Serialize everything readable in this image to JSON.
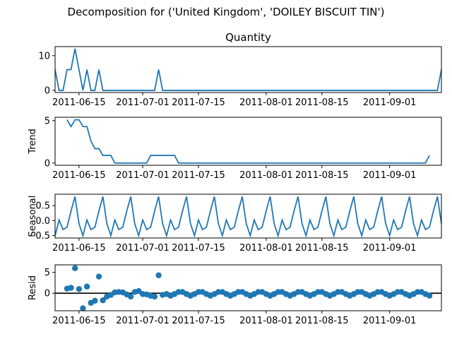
{
  "figure": {
    "suptitle": "Decomposition for ('United Kingdom', 'DOILEY BISCUIT TIN')"
  },
  "x_axis": {
    "start": "2011-06-09",
    "end": "2011-09-14",
    "ticks": [
      "2011-06-15",
      "2011-07-01",
      "2011-07-15",
      "2011-08-01",
      "2011-08-15",
      "2011-09-01"
    ]
  },
  "colors": {
    "series": "#1f77b4",
    "axis": "#000000"
  },
  "chart_data": [
    {
      "type": "line",
      "panel": "observed",
      "title": "Quantity",
      "ylabel": "",
      "ylim": [
        -0.6,
        12.6
      ],
      "yticks": [
        0,
        10
      ],
      "x_start": "2011-06-09",
      "values": [
        6,
        0,
        0,
        6,
        6,
        12,
        6,
        0,
        6,
        0,
        0,
        6,
        0,
        0,
        0,
        0,
        0,
        0,
        0,
        0,
        0,
        0,
        0,
        0,
        0,
        0,
        6,
        0,
        0,
        0,
        0,
        0,
        0,
        0,
        0,
        0,
        0,
        0,
        0,
        0,
        0,
        0,
        0,
        0,
        0,
        0,
        0,
        0,
        0,
        0,
        0,
        0,
        0,
        0,
        0,
        0,
        0,
        0,
        0,
        0,
        0,
        0,
        0,
        0,
        0,
        0,
        0,
        0,
        0,
        0,
        0,
        0,
        0,
        0,
        0,
        0,
        0,
        0,
        0,
        0,
        0,
        0,
        0,
        0,
        0,
        0,
        0,
        0,
        0,
        0,
        0,
        0,
        0,
        0,
        0,
        0,
        0,
        6
      ]
    },
    {
      "type": "line",
      "panel": "trend",
      "title": "",
      "ylabel": "Trend",
      "ylim": [
        -0.26,
        5.4
      ],
      "yticks": [
        0,
        5
      ],
      "x_start": "2011-06-09",
      "values": [
        null,
        null,
        null,
        5.1,
        4.3,
        5.1,
        5.1,
        4.3,
        4.3,
        2.6,
        1.7,
        1.7,
        0.9,
        0.9,
        0.9,
        0,
        0,
        0,
        0,
        0,
        0,
        0,
        0,
        0,
        0.9,
        0.9,
        0.9,
        0.9,
        0.9,
        0.9,
        0.9,
        0,
        0,
        0,
        0,
        0,
        0,
        0,
        0,
        0,
        0,
        0,
        0,
        0,
        0,
        0,
        0,
        0,
        0,
        0,
        0,
        0,
        0,
        0,
        0,
        0,
        0,
        0,
        0,
        0,
        0,
        0,
        0,
        0,
        0,
        0,
        0,
        0,
        0,
        0,
        0,
        0,
        0,
        0,
        0,
        0,
        0,
        0,
        0,
        0,
        0,
        0,
        0,
        0,
        0,
        0,
        0,
        0,
        0,
        0,
        0,
        0,
        0,
        0,
        0.9,
        null,
        null,
        null
      ]
    },
    {
      "type": "line",
      "panel": "seasonal",
      "title": "",
      "ylabel": "Seasonal",
      "ylim": [
        -0.58,
        0.88
      ],
      "yticks": [
        -0.5,
        0.0,
        0.5
      ],
      "ytick_labels": [
        "−0.5",
        "0.0",
        "0.5"
      ],
      "x_start": "2011-06-09",
      "values": [
        -0.5,
        0.02,
        -0.3,
        -0.22,
        0.32,
        0.8,
        -0.1,
        -0.5,
        0.02,
        -0.3,
        -0.22,
        0.32,
        0.8,
        -0.1,
        -0.5,
        0.02,
        -0.3,
        -0.22,
        0.32,
        0.8,
        -0.1,
        -0.5,
        0.02,
        -0.3,
        -0.22,
        0.32,
        0.8,
        -0.1,
        -0.5,
        0.02,
        -0.3,
        -0.22,
        0.32,
        0.8,
        -0.1,
        -0.5,
        0.02,
        -0.3,
        -0.22,
        0.32,
        0.8,
        -0.1,
        -0.5,
        0.02,
        -0.3,
        -0.22,
        0.32,
        0.8,
        -0.1,
        -0.5,
        0.02,
        -0.3,
        -0.22,
        0.32,
        0.8,
        -0.1,
        -0.5,
        0.02,
        -0.3,
        -0.22,
        0.32,
        0.8,
        -0.1,
        -0.5,
        0.02,
        -0.3,
        -0.22,
        0.32,
        0.8,
        -0.1,
        -0.5,
        0.02,
        -0.3,
        -0.22,
        0.32,
        0.8,
        -0.1,
        -0.5,
        0.02,
        -0.3,
        -0.22,
        0.32,
        0.8,
        -0.1,
        -0.5,
        0.02,
        -0.3,
        -0.22,
        0.32,
        0.8,
        -0.1,
        -0.5,
        0.02,
        -0.3,
        -0.22,
        0.32,
        0.8,
        -0.1
      ]
    },
    {
      "type": "scatter",
      "panel": "resid",
      "title": "",
      "ylabel": "Resid",
      "ylim": [
        -4.2,
        6.8
      ],
      "yticks": [
        0,
        5
      ],
      "x_start": "2011-06-09",
      "values": [
        null,
        null,
        null,
        1.1,
        1.3,
        6.0,
        1.0,
        -3.6,
        1.6,
        -2.3,
        -1.8,
        4.0,
        -1.7,
        -0.8,
        -0.4,
        0.2,
        0.3,
        0.2,
        -0.3,
        -0.8,
        0.3,
        0.5,
        -0.2,
        -0.3,
        -0.6,
        -0.8,
        4.3,
        -0.4,
        -0.2,
        -0.6,
        -0.2,
        0.3,
        0.3,
        -0.2,
        -0.6,
        -0.2,
        0.3,
        0.3,
        -0.2,
        -0.6,
        -0.2,
        0.3,
        0.3,
        -0.2,
        -0.6,
        -0.2,
        0.3,
        0.3,
        -0.2,
        -0.6,
        -0.2,
        0.3,
        0.3,
        -0.2,
        -0.6,
        -0.2,
        0.3,
        0.3,
        -0.2,
        -0.6,
        -0.2,
        0.3,
        0.3,
        -0.2,
        -0.6,
        -0.2,
        0.3,
        0.3,
        -0.2,
        -0.6,
        -0.2,
        0.3,
        0.3,
        -0.2,
        -0.6,
        -0.2,
        0.3,
        0.3,
        -0.2,
        -0.6,
        -0.2,
        0.3,
        0.3,
        -0.2,
        -0.6,
        -0.2,
        0.3,
        0.3,
        -0.2,
        -0.6,
        -0.2,
        0.3,
        0.3,
        -0.2,
        -0.6,
        null,
        null,
        null
      ]
    }
  ]
}
